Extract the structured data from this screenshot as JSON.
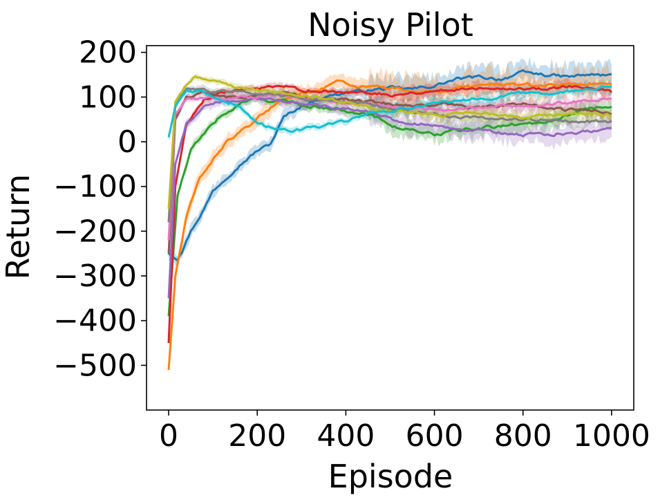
{
  "chart_data": {
    "type": "line",
    "title": "Noisy Pilot",
    "xlabel": "Episode",
    "ylabel": "Return",
    "xlim": [
      -50,
      1050
    ],
    "ylim": [
      -600,
      215
    ],
    "xticks": [
      0,
      200,
      400,
      600,
      800,
      1000
    ],
    "yticks": [
      200,
      100,
      0,
      -100,
      -200,
      -300,
      -400,
      -500
    ],
    "xtick_labels": [
      "0",
      "200",
      "400",
      "600",
      "800",
      "1000"
    ],
    "ytick_labels": [
      "200",
      "100",
      "0",
      "−100",
      "−200",
      "−300",
      "−400",
      "−500"
    ],
    "grid": false,
    "legend": "none",
    "shaded_band": "variation across runs",
    "series": [
      {
        "color": "#1f77b4",
        "band": 14,
        "values": [
          [
            0,
            -250
          ],
          [
            20,
            -265
          ],
          [
            50,
            -200
          ],
          [
            80,
            -150
          ],
          [
            100,
            -110
          ],
          [
            150,
            -60
          ],
          [
            200,
            -20
          ],
          [
            230,
            -5
          ],
          [
            260,
            55
          ],
          [
            300,
            80
          ],
          [
            350,
            100
          ],
          [
            400,
            110
          ],
          [
            450,
            115
          ],
          [
            500,
            120
          ],
          [
            550,
            118
          ],
          [
            600,
            125
          ],
          [
            650,
            140
          ],
          [
            700,
            145
          ],
          [
            750,
            140
          ],
          [
            800,
            155
          ],
          [
            850,
            150
          ],
          [
            900,
            145
          ],
          [
            950,
            150
          ],
          [
            1000,
            148
          ]
        ]
      },
      {
        "color": "#ff7f0e",
        "band": 18,
        "values": [
          [
            0,
            -510
          ],
          [
            15,
            -300
          ],
          [
            40,
            -170
          ],
          [
            70,
            -80
          ],
          [
            100,
            -40
          ],
          [
            130,
            0
          ],
          [
            160,
            20
          ],
          [
            190,
            40
          ],
          [
            220,
            70
          ],
          [
            260,
            95
          ],
          [
            300,
            110
          ],
          [
            350,
            120
          ],
          [
            380,
            138
          ],
          [
            420,
            120
          ],
          [
            480,
            125
          ],
          [
            540,
            115
          ],
          [
            600,
            110
          ],
          [
            650,
            120
          ],
          [
            700,
            125
          ],
          [
            760,
            130
          ],
          [
            820,
            125
          ],
          [
            880,
            128
          ],
          [
            940,
            130
          ],
          [
            1000,
            130
          ]
        ]
      },
      {
        "color": "#2ca02c",
        "band": 10,
        "values": [
          [
            0,
            -390
          ],
          [
            20,
            -120
          ],
          [
            50,
            -20
          ],
          [
            80,
            20
          ],
          [
            110,
            50
          ],
          [
            140,
            70
          ],
          [
            170,
            90
          ],
          [
            200,
            95
          ],
          [
            260,
            90
          ],
          [
            320,
            80
          ],
          [
            400,
            70
          ],
          [
            440,
            65
          ],
          [
            480,
            50
          ],
          [
            520,
            30
          ],
          [
            560,
            25
          ],
          [
            600,
            15
          ],
          [
            650,
            25
          ],
          [
            700,
            30
          ],
          [
            750,
            35
          ],
          [
            800,
            40
          ],
          [
            850,
            45
          ],
          [
            900,
            60
          ],
          [
            950,
            75
          ],
          [
            1000,
            80
          ]
        ]
      },
      {
        "color": "#d62728",
        "band": 8,
        "values": [
          [
            0,
            -450
          ],
          [
            15,
            -100
          ],
          [
            40,
            40
          ],
          [
            80,
            95
          ],
          [
            120,
            110
          ],
          [
            200,
            120
          ],
          [
            260,
            122
          ],
          [
            320,
            115
          ],
          [
            380,
            110
          ],
          [
            440,
            112
          ],
          [
            500,
            105
          ],
          [
            560,
            110
          ],
          [
            620,
            115
          ],
          [
            680,
            120
          ],
          [
            740,
            122
          ],
          [
            800,
            118
          ],
          [
            860,
            120
          ],
          [
            920,
            125
          ],
          [
            1000,
            110
          ]
        ]
      },
      {
        "color": "#9467bd",
        "band": 12,
        "values": [
          [
            0,
            -350
          ],
          [
            15,
            -50
          ],
          [
            40,
            40
          ],
          [
            80,
            80
          ],
          [
            120,
            90
          ],
          [
            200,
            95
          ],
          [
            260,
            92
          ],
          [
            320,
            85
          ],
          [
            380,
            75
          ],
          [
            440,
            70
          ],
          [
            480,
            60
          ],
          [
            520,
            45
          ],
          [
            560,
            40
          ],
          [
            600,
            35
          ],
          [
            650,
            30
          ],
          [
            700,
            25
          ],
          [
            750,
            20
          ],
          [
            800,
            15
          ],
          [
            850,
            15
          ],
          [
            900,
            20
          ],
          [
            950,
            25
          ],
          [
            1000,
            30
          ]
        ]
      },
      {
        "color": "#8c564b",
        "band": 8,
        "values": [
          [
            0,
            -250
          ],
          [
            15,
            50
          ],
          [
            40,
            100
          ],
          [
            80,
            110
          ],
          [
            140,
            100
          ],
          [
            200,
            105
          ],
          [
            260,
            110
          ],
          [
            320,
            100
          ],
          [
            380,
            95
          ],
          [
            440,
            90
          ],
          [
            500,
            85
          ],
          [
            560,
            80
          ],
          [
            620,
            85
          ],
          [
            680,
            75
          ],
          [
            740,
            80
          ],
          [
            800,
            85
          ],
          [
            860,
            75
          ],
          [
            920,
            70
          ],
          [
            1000,
            65
          ]
        ]
      },
      {
        "color": "#e377c2",
        "band": 8,
        "values": [
          [
            0,
            -220
          ],
          [
            15,
            60
          ],
          [
            40,
            95
          ],
          [
            80,
            100
          ],
          [
            140,
            95
          ],
          [
            200,
            100
          ],
          [
            260,
            105
          ],
          [
            320,
            95
          ],
          [
            380,
            90
          ],
          [
            440,
            85
          ],
          [
            500,
            80
          ],
          [
            560,
            75
          ],
          [
            620,
            70
          ],
          [
            680,
            75
          ],
          [
            740,
            78
          ],
          [
            800,
            80
          ],
          [
            860,
            85
          ],
          [
            920,
            90
          ],
          [
            1000,
            95
          ]
        ]
      },
      {
        "color": "#7f7f7f",
        "band": 8,
        "values": [
          [
            0,
            -180
          ],
          [
            15,
            80
          ],
          [
            40,
            120
          ],
          [
            80,
            115
          ],
          [
            140,
            110
          ],
          [
            200,
            108
          ],
          [
            260,
            102
          ],
          [
            320,
            95
          ],
          [
            380,
            90
          ],
          [
            440,
            85
          ],
          [
            500,
            75
          ],
          [
            560,
            65
          ],
          [
            620,
            60
          ],
          [
            680,
            55
          ],
          [
            740,
            50
          ],
          [
            800,
            50
          ],
          [
            860,
            48
          ],
          [
            920,
            45
          ],
          [
            1000,
            45
          ]
        ]
      },
      {
        "color": "#bcbd22",
        "band": 8,
        "values": [
          [
            0,
            -150
          ],
          [
            15,
            90
          ],
          [
            40,
            130
          ],
          [
            60,
            145
          ],
          [
            100,
            135
          ],
          [
            140,
            125
          ],
          [
            200,
            115
          ],
          [
            260,
            110
          ],
          [
            320,
            100
          ],
          [
            380,
            90
          ],
          [
            440,
            80
          ],
          [
            500,
            70
          ],
          [
            560,
            65
          ],
          [
            620,
            60
          ],
          [
            680,
            65
          ],
          [
            740,
            60
          ],
          [
            800,
            55
          ],
          [
            860,
            60
          ],
          [
            920,
            65
          ],
          [
            1000,
            60
          ]
        ]
      },
      {
        "color": "#17becf",
        "band": 8,
        "values": [
          [
            0,
            10
          ],
          [
            15,
            80
          ],
          [
            40,
            115
          ],
          [
            80,
            110
          ],
          [
            120,
            95
          ],
          [
            160,
            80
          ],
          [
            200,
            40
          ],
          [
            240,
            30
          ],
          [
            280,
            25
          ],
          [
            320,
            30
          ],
          [
            360,
            40
          ],
          [
            400,
            45
          ],
          [
            440,
            60
          ],
          [
            500,
            70
          ],
          [
            560,
            80
          ],
          [
            620,
            90
          ],
          [
            680,
            95
          ],
          [
            740,
            100
          ],
          [
            800,
            110
          ],
          [
            860,
            105
          ],
          [
            920,
            115
          ],
          [
            1000,
            120
          ]
        ]
      }
    ]
  }
}
